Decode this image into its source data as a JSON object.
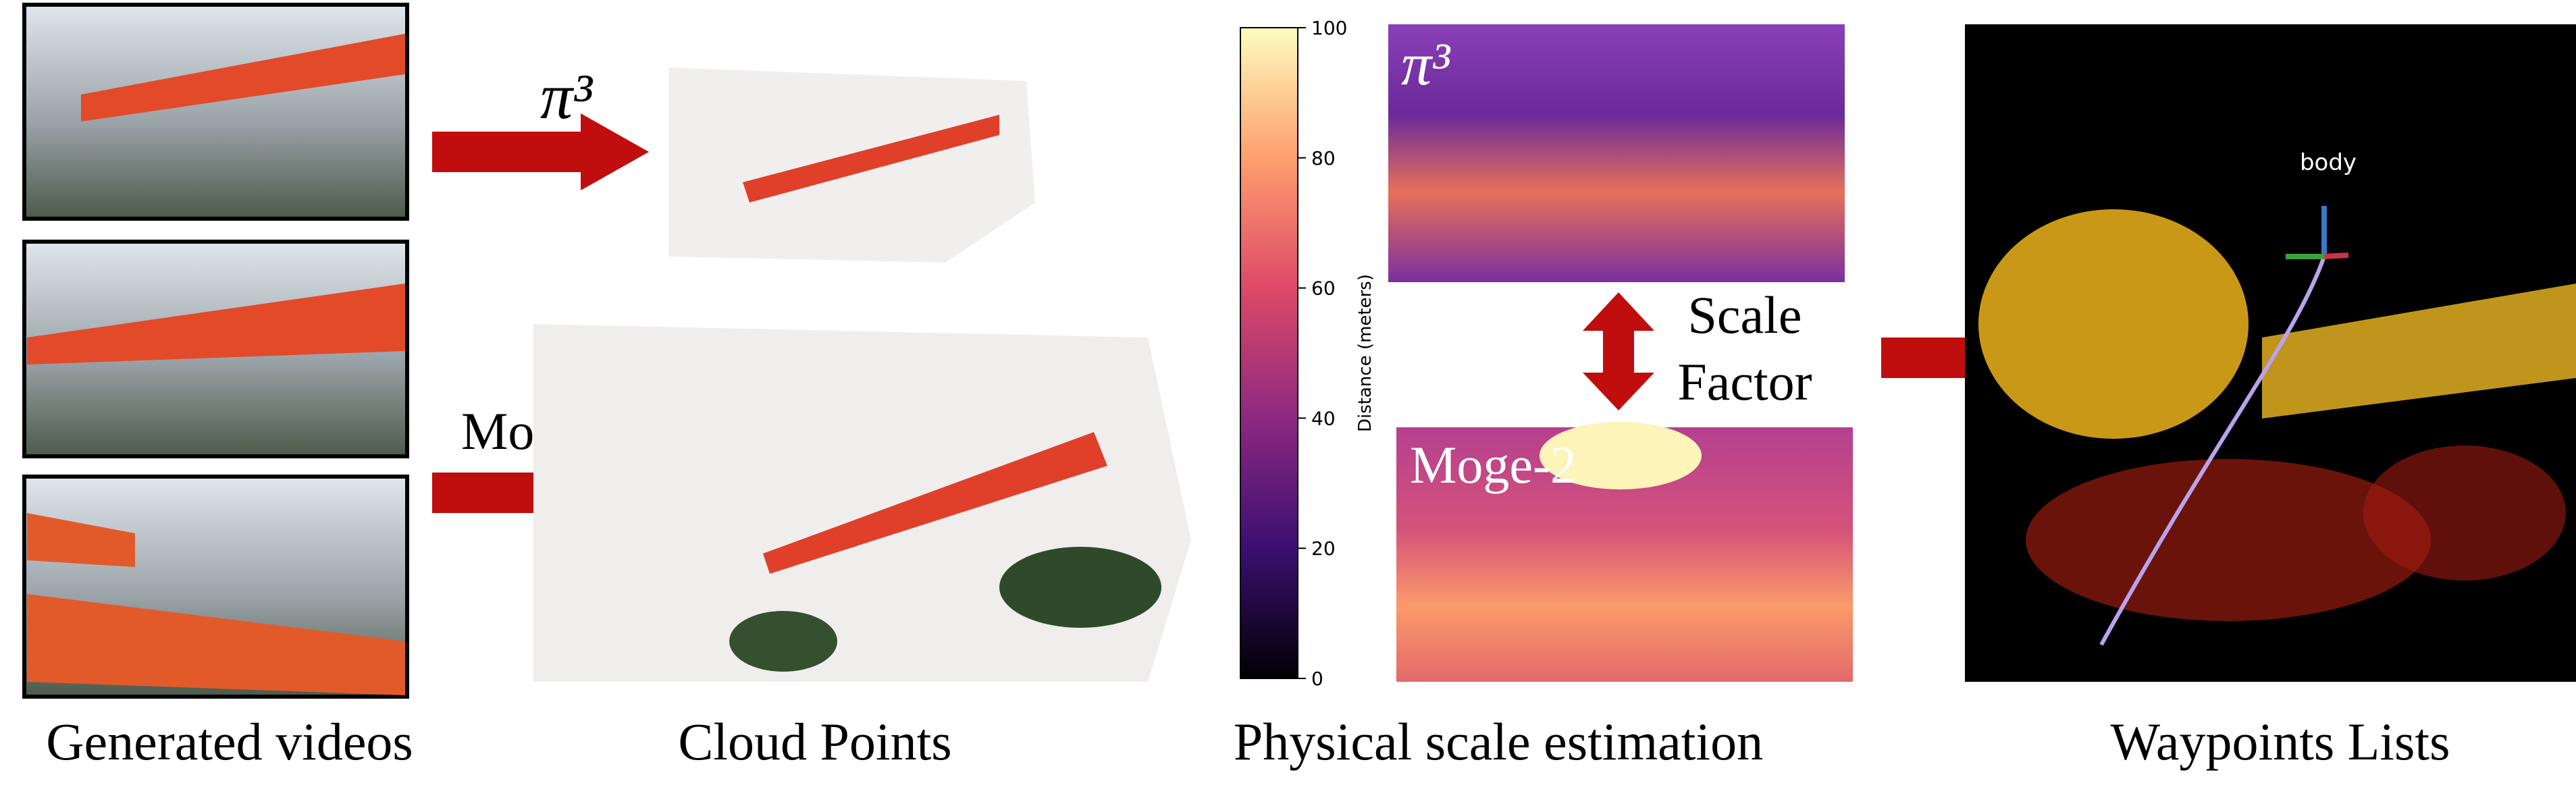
{
  "captions": [
    "Generated videos",
    "Cloud Points",
    "Physical scale estimation",
    "Waypoints Lists"
  ],
  "arrows": {
    "pi3": "π³",
    "moge": "Moge-2"
  },
  "depth_maps": {
    "top_label": "π³",
    "bottom_label": "Moge-2"
  },
  "scale_factor": {
    "line1": "Scale",
    "line2": "Factor"
  },
  "colorbar": {
    "label": "Distance (meters)",
    "range": [
      0,
      100
    ],
    "ticks": [
      0,
      20,
      40,
      60,
      80,
      100
    ]
  },
  "waypoints": {
    "frame_label": "body"
  }
}
